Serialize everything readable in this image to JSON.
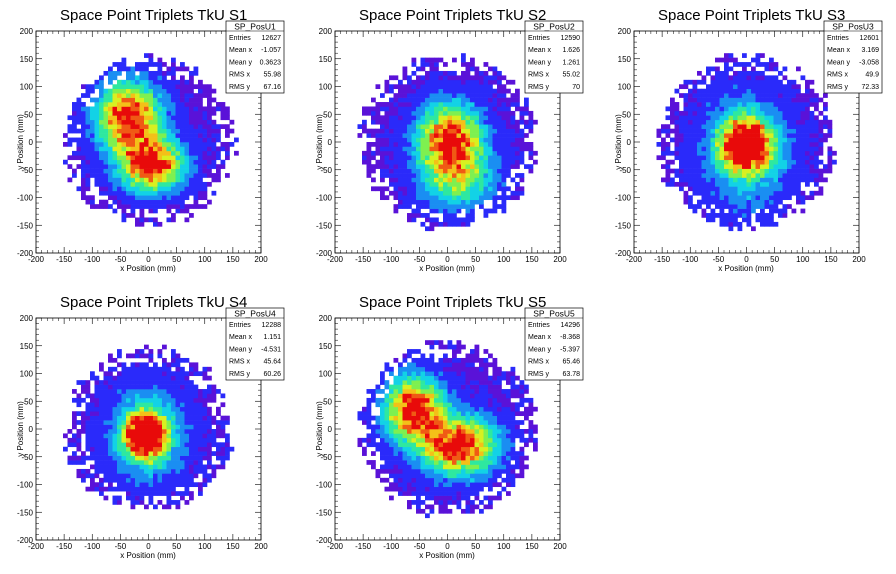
{
  "chart_data": [
    {
      "type": "heatmap",
      "title": "Space Point Triplets TkU S1",
      "xlabel": "x Position (mm)",
      "ylabel": "y Position (mm)",
      "xlim": [
        -200,
        200
      ],
      "ylim": [
        -200,
        200
      ],
      "x_ticks": [
        "-200",
        "-150",
        "-100",
        "-50",
        "0",
        "50",
        "100",
        "150",
        "200"
      ],
      "y_ticks": [
        "-200",
        "-150",
        "-100",
        "-50",
        "0",
        "50",
        "100",
        "150",
        "200"
      ],
      "stats": {
        "name": "SP_PosU1",
        "rows": [
          {
            "label": "Entries",
            "value": "12627"
          },
          {
            "label": "Mean x",
            "value": "-1.057"
          },
          {
            "label": "Mean y",
            "value": "0.3623"
          },
          {
            "label": "RMS x",
            "value": "55.98"
          },
          {
            "label": "RMS y",
            "value": "67.16"
          }
        ]
      },
      "blobs": [
        {
          "x": -35,
          "y": 45,
          "sx": 38,
          "sy": 42,
          "w": 1.0
        },
        {
          "x": 5,
          "y": -40,
          "sx": 38,
          "sy": 32,
          "w": 1.0
        }
      ],
      "radius": 145
    },
    {
      "type": "heatmap",
      "title": "Space Point Triplets TkU S2",
      "xlabel": "x Position (mm)",
      "ylabel": "y Position (mm)",
      "xlim": [
        -200,
        200
      ],
      "ylim": [
        -200,
        200
      ],
      "x_ticks": [
        "-200",
        "-150",
        "-100",
        "-50",
        "0",
        "50",
        "100",
        "150",
        "200"
      ],
      "y_ticks": [
        "-200",
        "-150",
        "-100",
        "-50",
        "0",
        "50",
        "100",
        "150",
        "200"
      ],
      "stats": {
        "name": "SP_PosU2",
        "rows": [
          {
            "label": "Entries",
            "value": "12590"
          },
          {
            "label": "Mean x",
            "value": "1.626"
          },
          {
            "label": "Mean y",
            "value": "1.261"
          },
          {
            "label": "RMS x",
            "value": "55.02"
          },
          {
            "label": "RMS y",
            "value": "70"
          }
        ]
      },
      "blobs": [
        {
          "x": 5,
          "y": 5,
          "sx": 38,
          "sy": 42,
          "w": 1.0
        },
        {
          "x": 20,
          "y": -70,
          "sx": 45,
          "sy": 35,
          "w": 0.45
        }
      ],
      "radius": 150
    },
    {
      "type": "heatmap",
      "title": "Space Point Triplets TkU S3",
      "xlabel": "x Position (mm)",
      "ylabel": "y Position (mm)",
      "xlim": [
        -200,
        200
      ],
      "ylim": [
        -200,
        200
      ],
      "x_ticks": [
        "-200",
        "-150",
        "-100",
        "-50",
        "0",
        "50",
        "100",
        "150",
        "200"
      ],
      "y_ticks": [
        "-200",
        "-150",
        "-100",
        "-50",
        "0",
        "50",
        "100",
        "150",
        "200"
      ],
      "stats": {
        "name": "SP_PosU3",
        "rows": [
          {
            "label": "Entries",
            "value": "12601"
          },
          {
            "label": "Mean x",
            "value": "3.169"
          },
          {
            "label": "Mean y",
            "value": "-3.058"
          },
          {
            "label": "RMS x",
            "value": "49.9"
          },
          {
            "label": "RMS y",
            "value": "72.33"
          }
        ]
      },
      "blobs": [
        {
          "x": 0,
          "y": -5,
          "sx": 30,
          "sy": 32,
          "w": 1.2
        },
        {
          "x": 0,
          "y": -20,
          "sx": 55,
          "sy": 75,
          "w": 0.3
        }
      ],
      "radius": 150
    },
    {
      "type": "heatmap",
      "title": "Space Point Triplets TkU S4",
      "xlabel": "x Position (mm)",
      "ylabel": "y Position (mm)",
      "xlim": [
        -200,
        200
      ],
      "ylim": [
        -200,
        200
      ],
      "x_ticks": [
        "-200",
        "-150",
        "-100",
        "-50",
        "0",
        "50",
        "100",
        "150",
        "200"
      ],
      "y_ticks": [
        "-200",
        "-150",
        "-100",
        "-50",
        "0",
        "50",
        "100",
        "150",
        "200"
      ],
      "stats": {
        "name": "SP_PosU4",
        "rows": [
          {
            "label": "Entries",
            "value": "12288"
          },
          {
            "label": "Mean x",
            "value": "1.151"
          },
          {
            "label": "Mean y",
            "value": "-4.531"
          },
          {
            "label": "RMS x",
            "value": "45.64"
          },
          {
            "label": "RMS y",
            "value": "60.26"
          }
        ]
      },
      "blobs": [
        {
          "x": -5,
          "y": -10,
          "sx": 25,
          "sy": 28,
          "w": 1.3
        },
        {
          "x": 0,
          "y": -10,
          "sx": 50,
          "sy": 60,
          "w": 0.3
        }
      ],
      "radius": 140
    },
    {
      "type": "heatmap",
      "title": "Space Point Triplets TkU S5",
      "xlabel": "x Position (mm)",
      "ylabel": "y Position (mm)",
      "xlim": [
        -200,
        200
      ],
      "ylim": [
        -200,
        200
      ],
      "x_ticks": [
        "-200",
        "-150",
        "-100",
        "-50",
        "0",
        "50",
        "100",
        "150",
        "200"
      ],
      "y_ticks": [
        "-200",
        "-150",
        "-100",
        "-50",
        "0",
        "50",
        "100",
        "150",
        "200"
      ],
      "stats": {
        "name": "SP_PosU5",
        "rows": [
          {
            "label": "Entries",
            "value": "14296"
          },
          {
            "label": "Mean x",
            "value": "-8.368"
          },
          {
            "label": "Mean y",
            "value": "-5.397"
          },
          {
            "label": "RMS x",
            "value": "65.46"
          },
          {
            "label": "RMS y",
            "value": "63.78"
          }
        ]
      },
      "blobs": [
        {
          "x": -60,
          "y": 35,
          "sx": 35,
          "sy": 38,
          "w": 1.0
        },
        {
          "x": 20,
          "y": -30,
          "sx": 45,
          "sy": 35,
          "w": 1.0
        }
      ],
      "radius": 150
    }
  ],
  "palette": [
    "#5a12d8",
    "#2a2afa",
    "#1a8ef2",
    "#12d2e6",
    "#2ee8a0",
    "#7ef050",
    "#d8f020",
    "#f4c018",
    "#f05a14",
    "#e80a0a"
  ]
}
